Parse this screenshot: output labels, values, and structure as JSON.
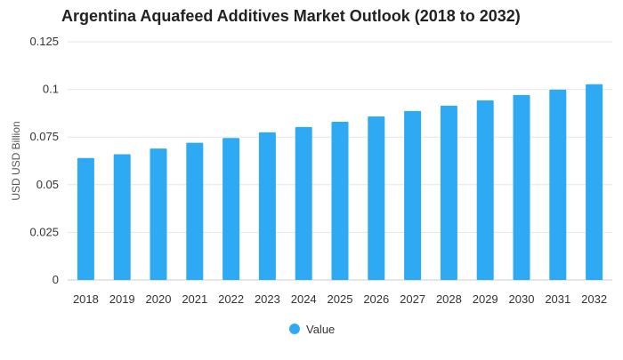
{
  "chart_data": {
    "type": "bar",
    "title": "Argentina Aquafeed Additives Market Outlook (2018 to 2032)",
    "xlabel": "",
    "ylabel": "USD USD Billion",
    "categories": [
      "2018",
      "2019",
      "2020",
      "2021",
      "2022",
      "2023",
      "2024",
      "2025",
      "2026",
      "2027",
      "2028",
      "2029",
      "2030",
      "2031",
      "2032"
    ],
    "series": [
      {
        "name": "Value",
        "color": "#2eaaf5",
        "values": [
          0.064,
          0.066,
          0.069,
          0.072,
          0.0745,
          0.0775,
          0.0803,
          0.083,
          0.0858,
          0.0887,
          0.0915,
          0.0943,
          0.0971,
          0.0999,
          0.1027
        ]
      }
    ],
    "ylim": [
      0,
      0.125
    ],
    "yticks": [
      "0",
      "0.025",
      "0.05",
      "0.075",
      "0.1",
      "0.125"
    ],
    "grid": true,
    "legend_position": "bottom"
  }
}
